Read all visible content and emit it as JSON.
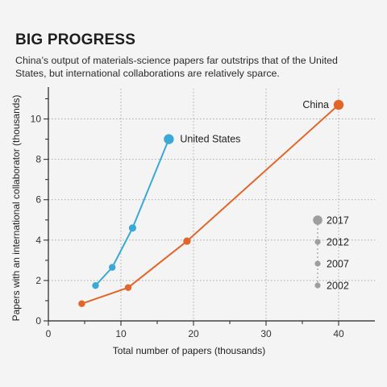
{
  "header": {
    "title": "BIG PROGRESS",
    "subtitle": "China’s output of materials-science papers far outstrips that of the United States, but international collaborations are relatively sparce."
  },
  "chart_data": {
    "type": "line",
    "xlabel": "Total number of papers (thousands)",
    "ylabel": "Papers with an international collaborator (thousands)",
    "xlim": [
      0,
      45
    ],
    "ylim": [
      0,
      11.5
    ],
    "xticks": [
      "0",
      "10",
      "20",
      "30",
      "40"
    ],
    "yticks": [
      "0",
      "2",
      "4",
      "6",
      "8",
      "10"
    ],
    "grid": true,
    "series": [
      {
        "name": "United States",
        "color": "#3aa9d6",
        "points": [
          {
            "year": "2002",
            "x": 6.5,
            "y": 1.75
          },
          {
            "year": "2007",
            "x": 8.8,
            "y": 2.65
          },
          {
            "year": "2012",
            "x": 11.6,
            "y": 4.6
          },
          {
            "year": "2017",
            "x": 16.6,
            "y": 9.0
          }
        ]
      },
      {
        "name": "China",
        "color": "#e0662a",
        "points": [
          {
            "year": "2002",
            "x": 4.6,
            "y": 0.85
          },
          {
            "year": "2007",
            "x": 11.0,
            "y": 1.65
          },
          {
            "year": "2012",
            "x": 19.1,
            "y": 3.95
          },
          {
            "year": "2017",
            "x": 40.0,
            "y": 10.7
          }
        ]
      }
    ],
    "legend": {
      "placement": "right",
      "color": "#9e9e9e",
      "years": [
        "2017",
        "2012",
        "2007",
        "2002"
      ]
    }
  }
}
